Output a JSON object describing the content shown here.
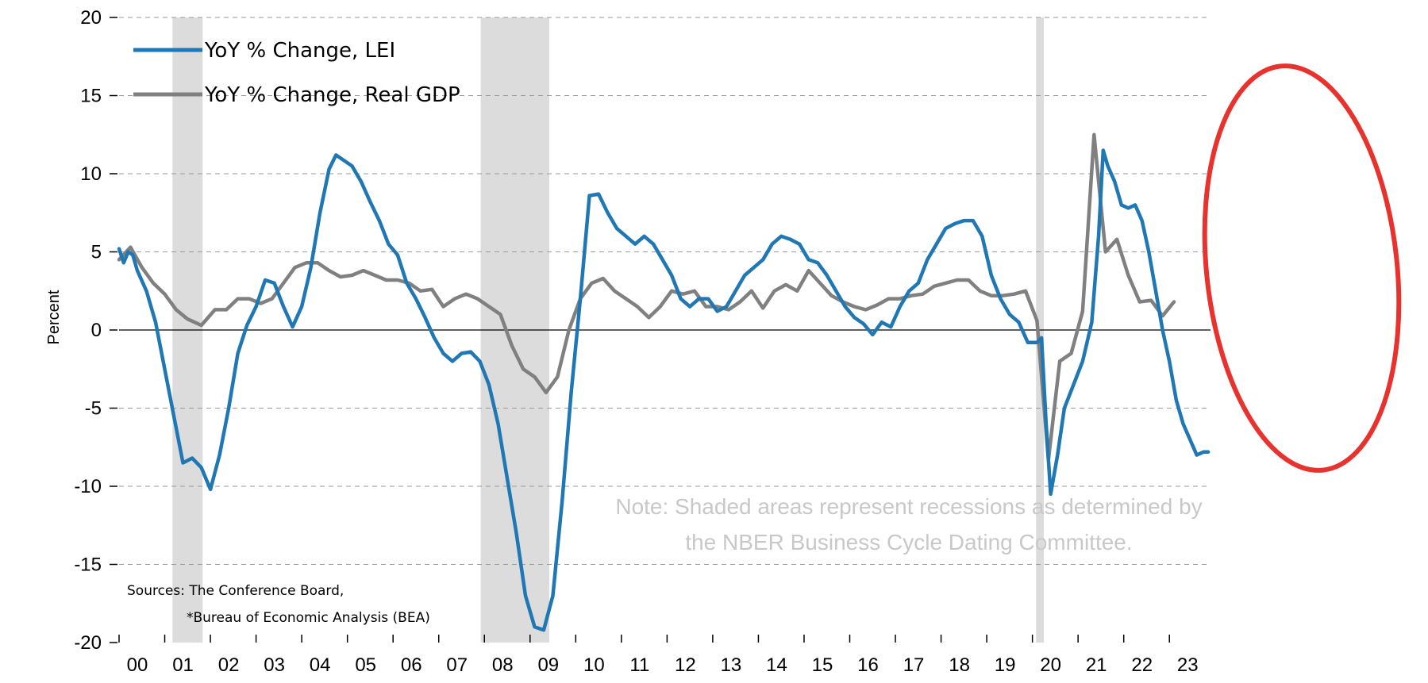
{
  "chart_data": {
    "type": "line",
    "ylabel": "Percent",
    "ylim": [
      -20,
      20
    ],
    "yticks": [
      20,
      15,
      10,
      5,
      0,
      -5,
      -10,
      -15,
      -20
    ],
    "xlim": [
      2000,
      2023.9
    ],
    "xtick_labels": [
      "00",
      "01",
      "02",
      "03",
      "04",
      "05",
      "06",
      "07",
      "08",
      "09",
      "10",
      "11",
      "12",
      "13",
      "14",
      "15",
      "16",
      "17",
      "18",
      "19",
      "20",
      "21",
      "22",
      "23"
    ],
    "grid": "horizontal dashed",
    "legend_position": "top-left",
    "recessions": [
      {
        "start": 2001.17,
        "end": 2001.83
      },
      {
        "start": 2007.92,
        "end": 2009.42
      },
      {
        "start": 2020.08,
        "end": 2020.25
      }
    ],
    "series": [
      {
        "name": "YoY % Change, LEI",
        "color": "#1f77b4",
        "points": [
          [
            2000.0,
            5.2
          ],
          [
            2000.1,
            4.3
          ],
          [
            2000.2,
            5.0
          ],
          [
            2000.3,
            4.8
          ],
          [
            2000.4,
            3.8
          ],
          [
            2000.6,
            2.5
          ],
          [
            2000.8,
            0.5
          ],
          [
            2001.0,
            -2.5
          ],
          [
            2001.2,
            -5.5
          ],
          [
            2001.4,
            -8.5
          ],
          [
            2001.6,
            -8.2
          ],
          [
            2001.8,
            -8.8
          ],
          [
            2002.0,
            -10.2
          ],
          [
            2002.2,
            -8.0
          ],
          [
            2002.4,
            -5.0
          ],
          [
            2002.6,
            -1.5
          ],
          [
            2002.8,
            0.3
          ],
          [
            2003.0,
            1.5
          ],
          [
            2003.2,
            3.2
          ],
          [
            2003.4,
            3.0
          ],
          [
            2003.6,
            1.5
          ],
          [
            2003.8,
            0.2
          ],
          [
            2004.0,
            1.5
          ],
          [
            2004.2,
            4.0
          ],
          [
            2004.4,
            7.5
          ],
          [
            2004.6,
            10.3
          ],
          [
            2004.75,
            11.2
          ],
          [
            2004.9,
            10.9
          ],
          [
            2005.1,
            10.5
          ],
          [
            2005.3,
            9.5
          ],
          [
            2005.5,
            8.2
          ],
          [
            2005.7,
            7.0
          ],
          [
            2005.9,
            5.5
          ],
          [
            2006.1,
            4.8
          ],
          [
            2006.3,
            3.0
          ],
          [
            2006.5,
            2.0
          ],
          [
            2006.7,
            0.8
          ],
          [
            2006.9,
            -0.5
          ],
          [
            2007.1,
            -1.5
          ],
          [
            2007.3,
            -2.0
          ],
          [
            2007.5,
            -1.5
          ],
          [
            2007.7,
            -1.4
          ],
          [
            2007.9,
            -2.0
          ],
          [
            2008.1,
            -3.5
          ],
          [
            2008.3,
            -6.0
          ],
          [
            2008.5,
            -9.5
          ],
          [
            2008.7,
            -13.0
          ],
          [
            2008.9,
            -17.0
          ],
          [
            2009.1,
            -19.0
          ],
          [
            2009.3,
            -19.2
          ],
          [
            2009.5,
            -17.0
          ],
          [
            2009.7,
            -11.0
          ],
          [
            2009.9,
            -4.0
          ],
          [
            2010.1,
            2.0
          ],
          [
            2010.3,
            8.6
          ],
          [
            2010.5,
            8.7
          ],
          [
            2010.7,
            7.5
          ],
          [
            2010.9,
            6.5
          ],
          [
            2011.1,
            6.0
          ],
          [
            2011.3,
            5.5
          ],
          [
            2011.5,
            6.0
          ],
          [
            2011.7,
            5.5
          ],
          [
            2011.9,
            4.5
          ],
          [
            2012.1,
            3.5
          ],
          [
            2012.3,
            2.0
          ],
          [
            2012.5,
            1.5
          ],
          [
            2012.7,
            2.0
          ],
          [
            2012.9,
            2.0
          ],
          [
            2013.1,
            1.2
          ],
          [
            2013.3,
            1.5
          ],
          [
            2013.5,
            2.5
          ],
          [
            2013.7,
            3.5
          ],
          [
            2013.9,
            4.0
          ],
          [
            2014.1,
            4.5
          ],
          [
            2014.3,
            5.5
          ],
          [
            2014.5,
            6.0
          ],
          [
            2014.7,
            5.8
          ],
          [
            2014.9,
            5.5
          ],
          [
            2015.1,
            4.5
          ],
          [
            2015.3,
            4.3
          ],
          [
            2015.5,
            3.5
          ],
          [
            2015.7,
            2.5
          ],
          [
            2015.9,
            1.5
          ],
          [
            2016.1,
            0.8
          ],
          [
            2016.3,
            0.4
          ],
          [
            2016.5,
            -0.3
          ],
          [
            2016.7,
            0.5
          ],
          [
            2016.9,
            0.2
          ],
          [
            2017.1,
            1.5
          ],
          [
            2017.3,
            2.5
          ],
          [
            2017.5,
            3.0
          ],
          [
            2017.7,
            4.5
          ],
          [
            2017.9,
            5.5
          ],
          [
            2018.1,
            6.5
          ],
          [
            2018.3,
            6.8
          ],
          [
            2018.5,
            7.0
          ],
          [
            2018.7,
            7.0
          ],
          [
            2018.9,
            6.0
          ],
          [
            2019.1,
            3.5
          ],
          [
            2019.3,
            2.0
          ],
          [
            2019.5,
            1.0
          ],
          [
            2019.7,
            0.5
          ],
          [
            2019.9,
            -0.8
          ],
          [
            2020.1,
            -0.8
          ],
          [
            2020.2,
            -0.5
          ],
          [
            2020.3,
            -6.0
          ],
          [
            2020.4,
            -10.5
          ],
          [
            2020.55,
            -8.0
          ],
          [
            2020.7,
            -5.0
          ],
          [
            2020.9,
            -3.5
          ],
          [
            2021.1,
            -2.0
          ],
          [
            2021.3,
            0.5
          ],
          [
            2021.45,
            6.0
          ],
          [
            2021.55,
            11.5
          ],
          [
            2021.65,
            10.5
          ],
          [
            2021.8,
            9.5
          ],
          [
            2021.95,
            8.0
          ],
          [
            2022.1,
            7.8
          ],
          [
            2022.25,
            8.0
          ],
          [
            2022.4,
            7.0
          ],
          [
            2022.55,
            5.0
          ],
          [
            2022.7,
            2.5
          ],
          [
            2022.85,
            0.0
          ],
          [
            2023.0,
            -2.0
          ],
          [
            2023.15,
            -4.5
          ],
          [
            2023.3,
            -6.0
          ],
          [
            2023.45,
            -7.0
          ],
          [
            2023.6,
            -8.0
          ],
          [
            2023.75,
            -7.8
          ],
          [
            2023.85,
            -7.8
          ]
        ]
      },
      {
        "name": "YoY % Change, Real GDP",
        "color": "#808080",
        "points": [
          [
            2000.0,
            4.5
          ],
          [
            2000.25,
            5.3
          ],
          [
            2000.5,
            4.0
          ],
          [
            2000.75,
            3.0
          ],
          [
            2001.0,
            2.3
          ],
          [
            2001.25,
            1.3
          ],
          [
            2001.5,
            0.7
          ],
          [
            2001.8,
            0.3
          ],
          [
            2002.1,
            1.3
          ],
          [
            2002.35,
            1.3
          ],
          [
            2002.6,
            2.0
          ],
          [
            2002.85,
            2.0
          ],
          [
            2003.1,
            1.7
          ],
          [
            2003.35,
            2.0
          ],
          [
            2003.6,
            3.0
          ],
          [
            2003.85,
            4.0
          ],
          [
            2004.1,
            4.3
          ],
          [
            2004.35,
            4.3
          ],
          [
            2004.6,
            3.8
          ],
          [
            2004.85,
            3.4
          ],
          [
            2005.1,
            3.5
          ],
          [
            2005.35,
            3.8
          ],
          [
            2005.6,
            3.5
          ],
          [
            2005.85,
            3.2
          ],
          [
            2006.1,
            3.2
          ],
          [
            2006.35,
            3.0
          ],
          [
            2006.6,
            2.5
          ],
          [
            2006.85,
            2.6
          ],
          [
            2007.1,
            1.5
          ],
          [
            2007.35,
            2.0
          ],
          [
            2007.6,
            2.3
          ],
          [
            2007.85,
            2.0
          ],
          [
            2008.1,
            1.5
          ],
          [
            2008.35,
            1.0
          ],
          [
            2008.6,
            -1.0
          ],
          [
            2008.85,
            -2.5
          ],
          [
            2009.1,
            -3.0
          ],
          [
            2009.35,
            -4.0
          ],
          [
            2009.6,
            -3.0
          ],
          [
            2009.85,
            0.0
          ],
          [
            2010.1,
            2.0
          ],
          [
            2010.35,
            3.0
          ],
          [
            2010.6,
            3.3
          ],
          [
            2010.85,
            2.5
          ],
          [
            2011.1,
            2.0
          ],
          [
            2011.35,
            1.5
          ],
          [
            2011.6,
            0.8
          ],
          [
            2011.85,
            1.5
          ],
          [
            2012.1,
            2.5
          ],
          [
            2012.35,
            2.3
          ],
          [
            2012.6,
            2.5
          ],
          [
            2012.85,
            1.5
          ],
          [
            2013.1,
            1.5
          ],
          [
            2013.35,
            1.3
          ],
          [
            2013.6,
            1.8
          ],
          [
            2013.85,
            2.5
          ],
          [
            2014.1,
            1.4
          ],
          [
            2014.35,
            2.5
          ],
          [
            2014.6,
            2.9
          ],
          [
            2014.85,
            2.5
          ],
          [
            2015.1,
            3.8
          ],
          [
            2015.35,
            3.0
          ],
          [
            2015.6,
            2.2
          ],
          [
            2015.85,
            1.8
          ],
          [
            2016.1,
            1.5
          ],
          [
            2016.35,
            1.3
          ],
          [
            2016.6,
            1.6
          ],
          [
            2016.85,
            2.0
          ],
          [
            2017.1,
            2.0
          ],
          [
            2017.35,
            2.2
          ],
          [
            2017.6,
            2.3
          ],
          [
            2017.85,
            2.8
          ],
          [
            2018.1,
            3.0
          ],
          [
            2018.35,
            3.2
          ],
          [
            2018.6,
            3.2
          ],
          [
            2018.85,
            2.5
          ],
          [
            2019.1,
            2.2
          ],
          [
            2019.35,
            2.2
          ],
          [
            2019.6,
            2.3
          ],
          [
            2019.85,
            2.5
          ],
          [
            2020.1,
            0.6
          ],
          [
            2020.35,
            -8.3
          ],
          [
            2020.6,
            -2.0
          ],
          [
            2020.85,
            -1.5
          ],
          [
            2021.1,
            1.2
          ],
          [
            2021.35,
            12.5
          ],
          [
            2021.6,
            5.0
          ],
          [
            2021.85,
            5.8
          ],
          [
            2022.1,
            3.5
          ],
          [
            2022.35,
            1.8
          ],
          [
            2022.6,
            1.9
          ],
          [
            2022.85,
            0.9
          ],
          [
            2023.1,
            1.8
          ]
        ]
      }
    ],
    "annotations": {
      "note_line1": "Note: Shaded areas represent recessions as determined by",
      "note_line2": "the NBER Business Cycle Dating Committee.",
      "source_line1": "Sources: The Conference Board,",
      "source_line2": "*Bureau of Economic Analysis (BEA)",
      "highlight_color": "#e8322d"
    }
  }
}
